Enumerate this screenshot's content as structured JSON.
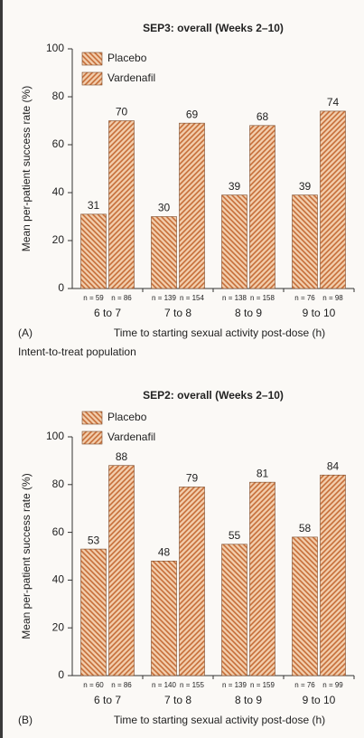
{
  "chart_data": [
    {
      "type": "bar",
      "title": "SEP3: overall (Weeks 2–10)",
      "categories": [
        "6 to 7",
        "7 to 8",
        "8 to 9",
        "9 to 10"
      ],
      "series": [
        {
          "name": "Placebo",
          "color": "#c46a34",
          "values": [
            31,
            30,
            39,
            39
          ],
          "n_labels": [
            "n = 59",
            "n = 139",
            "n = 138",
            "n = 76"
          ]
        },
        {
          "name": "Vardenafil",
          "color": "#c46a34",
          "values": [
            70,
            69,
            68,
            74
          ],
          "n_labels": [
            "n = 86",
            "n = 154",
            "n = 158",
            "n = 98"
          ]
        }
      ],
      "ylim": [
        0,
        100
      ],
      "yticks": [
        0,
        20,
        40,
        60,
        80,
        100
      ],
      "xlabel": "Time to starting sexual activity post-dose (h)",
      "ylabel": "Mean per-patient success rate (%)",
      "legend": "upper left",
      "panel_label": "(A)",
      "note": "Intent-to-treat population"
    },
    {
      "type": "bar",
      "title": "SEP2: overall (Weeks 2–10)",
      "categories": [
        "6 to 7",
        "7 to 8",
        "8 to 9",
        "9 to 10"
      ],
      "series": [
        {
          "name": "Placebo",
          "color": "#c46a34",
          "values": [
            53,
            48,
            55,
            58
          ],
          "n_labels": [
            "n = 60",
            "n = 140",
            "n = 139",
            "n = 76"
          ]
        },
        {
          "name": "Vardenafil",
          "color": "#c46a34",
          "values": [
            88,
            79,
            81,
            84
          ],
          "n_labels": [
            "n = 86",
            "n = 155",
            "n = 159",
            "n = 99"
          ]
        }
      ],
      "ylim": [
        0,
        100
      ],
      "yticks": [
        0,
        20,
        40,
        60,
        80,
        100
      ],
      "xlabel": "Time to starting sexual activity post-dose (h)",
      "ylabel": "Mean per-patient success rate (%)",
      "legend": "upper left",
      "panel_label": "(B)"
    }
  ]
}
